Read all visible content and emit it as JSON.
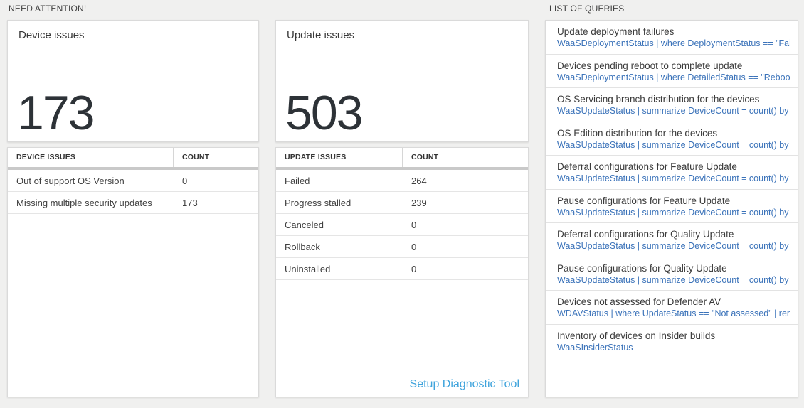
{
  "sections": {
    "need_attention": {
      "label": "NEED ATTENTION!"
    },
    "queries": {
      "label": "LIST OF QUERIES"
    }
  },
  "device_card": {
    "title": "Device issues",
    "big_number": "173",
    "table": {
      "headers": [
        "DEVICE ISSUES",
        "COUNT"
      ],
      "rows": [
        {
          "label": "Out of support OS Version",
          "count": "0"
        },
        {
          "label": "Missing multiple security updates",
          "count": "173"
        }
      ]
    }
  },
  "update_card": {
    "title": "Update issues",
    "big_number": "503",
    "table": {
      "headers": [
        "UPDATE ISSUES",
        "COUNT"
      ],
      "rows": [
        {
          "label": "Failed",
          "count": "264"
        },
        {
          "label": "Progress stalled",
          "count": "239"
        },
        {
          "label": "Canceled",
          "count": "0"
        },
        {
          "label": "Rollback",
          "count": "0"
        },
        {
          "label": "Uninstalled",
          "count": "0"
        }
      ]
    },
    "link_label": "Setup Diagnostic Tool"
  },
  "queries_panel": {
    "items": [
      {
        "title": "Update deployment failures",
        "query": "WaaSDeploymentStatus | where DeploymentStatus == \"Failed\" |..."
      },
      {
        "title": "Devices pending reboot to complete update",
        "query": "WaaSDeploymentStatus | where DetailedStatus == \"Reboot pend..."
      },
      {
        "title": "OS Servicing branch distribution for the devices",
        "query": "WaaSUpdateStatus | summarize DeviceCount = count() by OSSer..."
      },
      {
        "title": "OS Edition distribution for the devices",
        "query": "WaaSUpdateStatus | summarize DeviceCount = count() by OSEdit..."
      },
      {
        "title": "Deferral configurations for Feature Update",
        "query": "WaaSUpdateStatus | summarize DeviceCount = count() by Featur..."
      },
      {
        "title": "Pause configurations for Feature Update",
        "query": "WaaSUpdateStatus | summarize DeviceCount = count() by Featur..."
      },
      {
        "title": "Deferral configurations for Quality Update",
        "query": "WaaSUpdateStatus | summarize DeviceCount = count() by Qualit..."
      },
      {
        "title": "Pause configurations for Quality Update",
        "query": "WaaSUpdateStatus | summarize DeviceCount = count() by Qualit..."
      },
      {
        "title": "Devices not assessed for Defender AV",
        "query": "WDAVStatus | where UpdateStatus == \"Not assessed\" | render ta..."
      },
      {
        "title": "Inventory of devices on Insider builds",
        "query": "WaaSInsiderStatus"
      }
    ]
  },
  "colors": {
    "page_background": "#f0f0ef",
    "card_background": "#ffffff",
    "card_border": "#dadada",
    "thick_divider": "#c9c9c9",
    "query_code_blue": "#3a72b9",
    "setup_link_blue": "#3ea3dc",
    "big_number_text": "#2d3237"
  }
}
